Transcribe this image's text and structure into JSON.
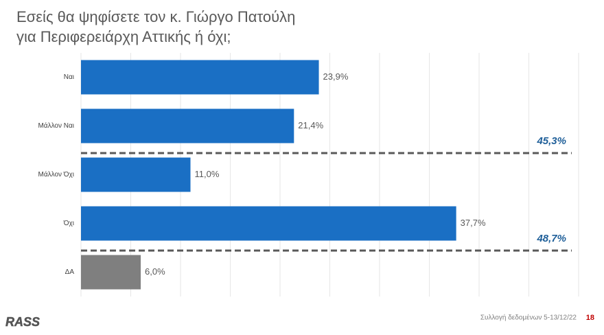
{
  "chart_data": {
    "type": "hbar",
    "title": [
      "Εσείς θα ψηφίσετε τον κ. Γιώργο Πατούλη",
      "για Περιφερειάρχη Αττικής ή όχι;"
    ],
    "categories": [
      "Ναι",
      "Μάλλον Ναι",
      "Μάλλον Όχι",
      "Όχι",
      "ΔΑ"
    ],
    "values": [
      23.9,
      21.4,
      11.0,
      37.7,
      6.0
    ],
    "value_labels": [
      "23,9%",
      "21,4%",
      "11,0%",
      "37,7%",
      "6,0%"
    ],
    "colors": [
      "#1a6fc4",
      "#1a6fc4",
      "#1a6fc4",
      "#1a6fc4",
      "#7f7f7f"
    ],
    "xlim": [
      0,
      50
    ],
    "xticks": [
      0,
      5,
      10,
      15,
      20,
      25,
      30,
      35,
      40,
      45,
      50
    ],
    "grid": true,
    "annotations": [
      "45,3%",
      "48,7%"
    ]
  },
  "footer": {
    "logo": "RASS",
    "note": "Συλλογή δεδομένων 5-13/12/22",
    "page": "18"
  }
}
